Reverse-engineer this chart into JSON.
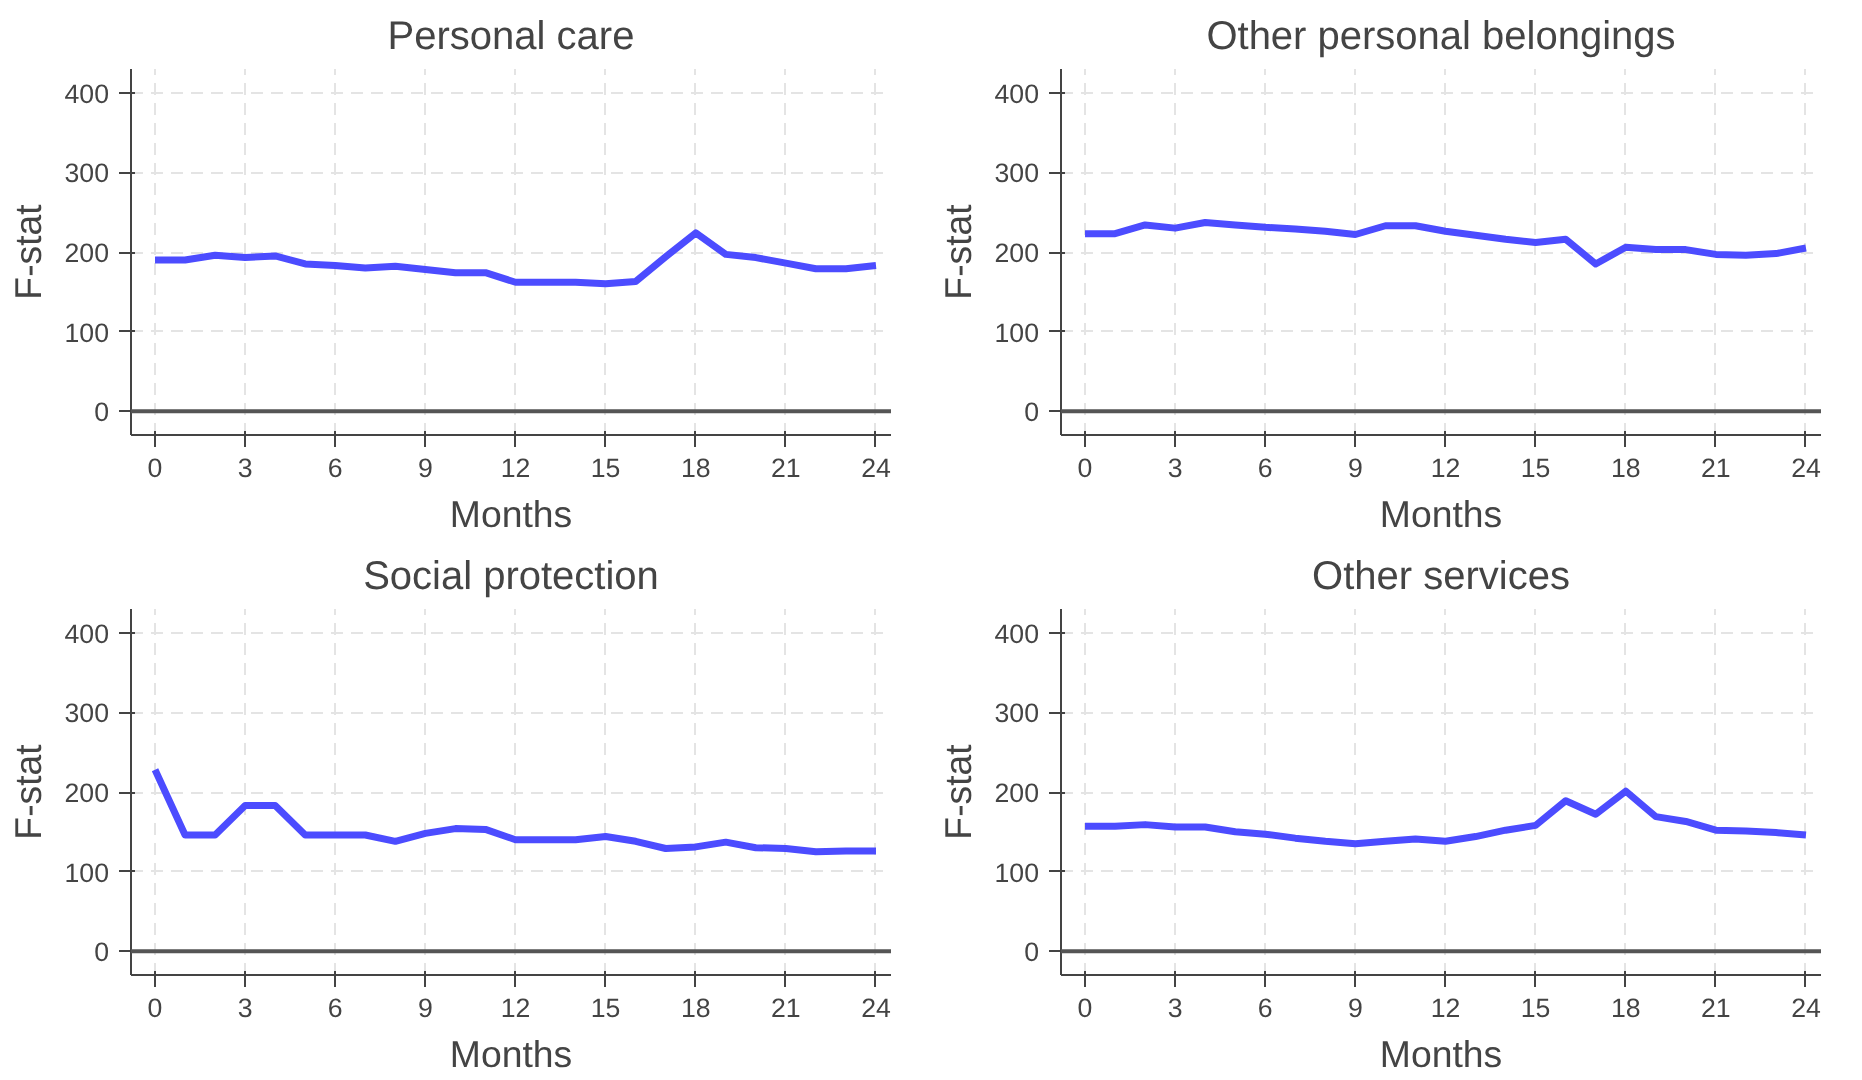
{
  "chart_data": [
    {
      "type": "line",
      "title": "Personal care",
      "xlabel": "Months",
      "ylabel": "F-stat",
      "x": [
        0,
        1,
        2,
        3,
        4,
        5,
        6,
        7,
        8,
        9,
        10,
        11,
        12,
        13,
        14,
        15,
        16,
        17,
        18,
        19,
        20,
        21,
        22,
        23,
        24
      ],
      "series": [
        {
          "color": "#4c4cff",
          "values": [
            190,
            190,
            196,
            193,
            195,
            185,
            183,
            180,
            182,
            178,
            174,
            174,
            162,
            162,
            162,
            160,
            163,
            194,
            224,
            197,
            193,
            186,
            179,
            179,
            183
          ]
        }
      ],
      "xlim": [
        -0.8,
        24.5
      ],
      "ylim": [
        -30,
        430
      ],
      "xticks": [
        0,
        3,
        6,
        9,
        12,
        15,
        18,
        21,
        24
      ],
      "yticks": [
        0,
        100,
        200,
        300,
        400
      ],
      "grid": true,
      "ref_lines": [
        {
          "axis": "y",
          "value": 0,
          "color": "#555555"
        }
      ]
    },
    {
      "type": "line",
      "title": "Other personal belongings",
      "xlabel": "Months",
      "ylabel": "F-stat",
      "x": [
        0,
        1,
        2,
        3,
        4,
        5,
        6,
        7,
        8,
        9,
        10,
        11,
        12,
        13,
        14,
        15,
        16,
        17,
        18,
        19,
        20,
        21,
        22,
        23,
        24
      ],
      "series": [
        {
          "color": "#4c4cff",
          "values": [
            223,
            223,
            234,
            230,
            237,
            234,
            231,
            229,
            226,
            222,
            233,
            233,
            226,
            221,
            216,
            212,
            216,
            185,
            206,
            203,
            203,
            197,
            196,
            198,
            205
          ]
        }
      ],
      "xlim": [
        -0.8,
        24.5
      ],
      "ylim": [
        -30,
        430
      ],
      "xticks": [
        0,
        3,
        6,
        9,
        12,
        15,
        18,
        21,
        24
      ],
      "yticks": [
        0,
        100,
        200,
        300,
        400
      ],
      "grid": true,
      "ref_lines": [
        {
          "axis": "y",
          "value": 0,
          "color": "#555555"
        }
      ]
    },
    {
      "type": "line",
      "title": "Social protection",
      "xlabel": "Months",
      "ylabel": "F-stat",
      "x": [
        0,
        1,
        2,
        3,
        4,
        5,
        6,
        7,
        8,
        9,
        10,
        11,
        12,
        13,
        14,
        15,
        16,
        17,
        18,
        19,
        20,
        21,
        22,
        23,
        24
      ],
      "series": [
        {
          "color": "#4c4cff",
          "values": [
            228,
            146,
            146,
            183,
            183,
            146,
            146,
            146,
            138,
            148,
            154,
            153,
            140,
            140,
            140,
            144,
            138,
            129,
            131,
            137,
            130,
            129,
            125,
            126,
            126
          ]
        }
      ],
      "xlim": [
        -0.8,
        24.5
      ],
      "ylim": [
        -30,
        430
      ],
      "xticks": [
        0,
        3,
        6,
        9,
        12,
        15,
        18,
        21,
        24
      ],
      "yticks": [
        0,
        100,
        200,
        300,
        400
      ],
      "grid": true,
      "ref_lines": [
        {
          "axis": "y",
          "value": 0,
          "color": "#555555"
        }
      ]
    },
    {
      "type": "line",
      "title": "Other services",
      "xlabel": "Months",
      "ylabel": "F-stat",
      "x": [
        0,
        1,
        2,
        3,
        4,
        5,
        6,
        7,
        8,
        9,
        10,
        11,
        12,
        13,
        14,
        15,
        16,
        17,
        18,
        19,
        20,
        21,
        22,
        23,
        24
      ],
      "series": [
        {
          "color": "#4c4cff",
          "values": [
            157,
            157,
            159,
            156,
            156,
            150,
            147,
            142,
            138,
            135,
            138,
            141,
            138,
            144,
            152,
            158,
            189,
            172,
            201,
            169,
            163,
            152,
            151,
            149,
            146
          ]
        }
      ],
      "xlim": [
        -0.8,
        24.5
      ],
      "ylim": [
        -30,
        430
      ],
      "xticks": [
        0,
        3,
        6,
        9,
        12,
        15,
        18,
        21,
        24
      ],
      "yticks": [
        0,
        100,
        200,
        300,
        400
      ],
      "grid": true,
      "ref_lines": [
        {
          "axis": "y",
          "value": 0,
          "color": "#555555"
        }
      ]
    }
  ]
}
